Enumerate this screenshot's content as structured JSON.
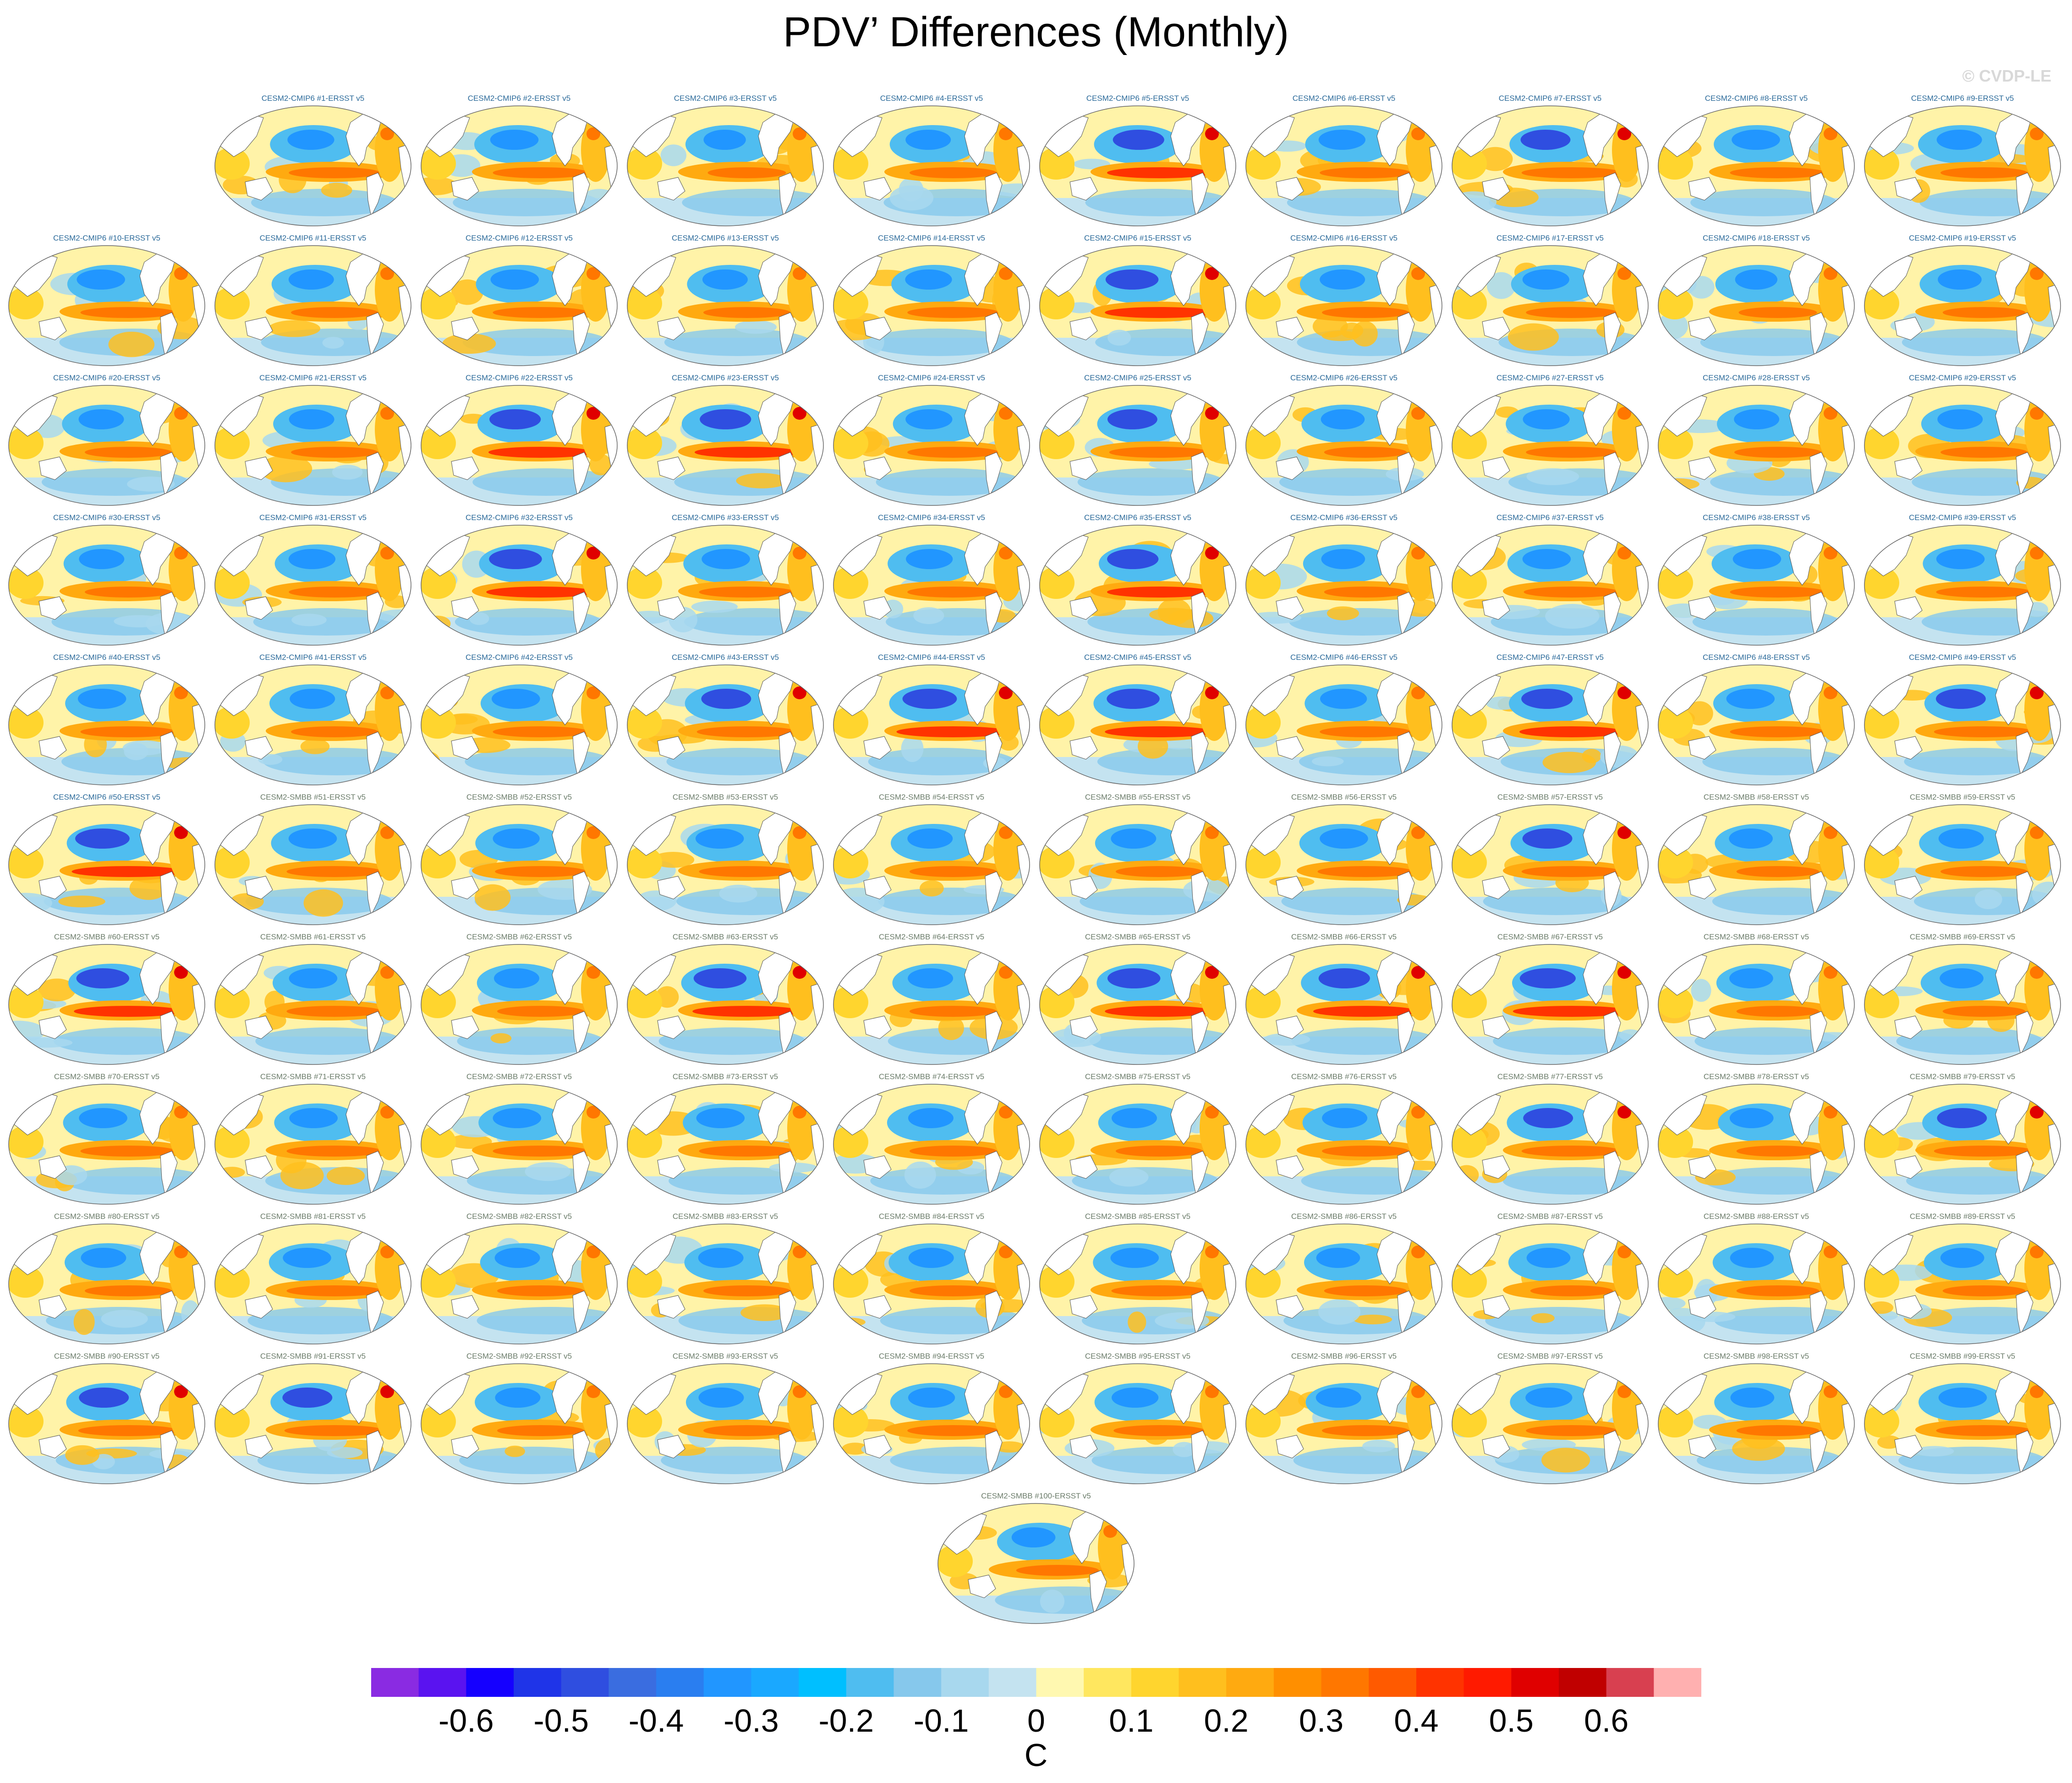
{
  "title": "PDV’ Differences (Monthly)",
  "watermark": "© CVDP-LE",
  "colorbar": {
    "unit": "C",
    "colors": [
      "#8a2be2",
      "#5a13f0",
      "#1500ff",
      "#1f34e8",
      "#2f4ee0",
      "#3a6de0",
      "#2a7ef0",
      "#2196ff",
      "#1aa8ff",
      "#00bfff",
      "#4fbdf0",
      "#86c8ec",
      "#a8d8ee",
      "#c4e3f0",
      "#fff8b0",
      "#ffe75f",
      "#ffd52e",
      "#ffbf1e",
      "#ffaa10",
      "#ff8f00",
      "#ff7700",
      "#ff5a00",
      "#ff3300",
      "#ff1a00",
      "#e00000",
      "#c00000",
      "#d84050",
      "#ffb0b0"
    ],
    "tick_labels": [
      "-0.6",
      "-0.5",
      "-0.4",
      "-0.3",
      "-0.2",
      "-0.1",
      "0",
      "0.1",
      "0.2",
      "0.3",
      "0.4",
      "0.5",
      "0.6"
    ]
  },
  "chart_data": {
    "type": "heatmap",
    "title": "PDV’ Differences (Monthly)",
    "colorbar_range": [
      -0.65,
      0.65
    ],
    "colorbar_unit": "C",
    "panels": [
      {
        "label": "CESM2-CMIP6 #1-ERSST v5",
        "color": "#2b6a9a",
        "intensity": 0.55
      },
      {
        "label": "CESM2-CMIP6 #2-ERSST v5",
        "color": "#2b6a9a",
        "intensity": 0.6
      },
      {
        "label": "CESM2-CMIP6 #3-ERSST v5",
        "color": "#2b6a9a",
        "intensity": 0.4
      },
      {
        "label": "CESM2-CMIP6 #4-ERSST v5",
        "color": "#2b6a9a",
        "intensity": 0.5
      },
      {
        "label": "CESM2-CMIP6 #5-ERSST v5",
        "color": "#2b6a9a",
        "intensity": 0.7
      },
      {
        "label": "CESM2-CMIP6 #6-ERSST v5",
        "color": "#2b6a9a",
        "intensity": 0.55
      },
      {
        "label": "CESM2-CMIP6 #7-ERSST v5",
        "color": "#2b6a9a",
        "intensity": 0.65
      },
      {
        "label": "CESM2-CMIP6 #8-ERSST v5",
        "color": "#2b6a9a",
        "intensity": 0.6
      },
      {
        "label": "CESM2-CMIP6 #9-ERSST v5",
        "color": "#2b6a9a",
        "intensity": 0.5
      },
      {
        "label": "CESM2-CMIP6 #10-ERSST v5",
        "color": "#2b6a9a",
        "intensity": 0.6
      },
      {
        "label": "CESM2-CMIP6 #11-ERSST v5",
        "color": "#2b6a9a",
        "intensity": 0.5
      },
      {
        "label": "CESM2-CMIP6 #12-ERSST v5",
        "color": "#2b6a9a",
        "intensity": 0.6
      },
      {
        "label": "CESM2-CMIP6 #13-ERSST v5",
        "color": "#2b6a9a",
        "intensity": 0.5
      },
      {
        "label": "CESM2-CMIP6 #14-ERSST v5",
        "color": "#2b6a9a",
        "intensity": 0.55
      },
      {
        "label": "CESM2-CMIP6 #15-ERSST v5",
        "color": "#2b6a9a",
        "intensity": 0.75
      },
      {
        "label": "CESM2-CMIP6 #16-ERSST v5",
        "color": "#2b6a9a",
        "intensity": 0.5
      },
      {
        "label": "CESM2-CMIP6 #17-ERSST v5",
        "color": "#2b6a9a",
        "intensity": 0.55
      },
      {
        "label": "CESM2-CMIP6 #18-ERSST v5",
        "color": "#2b6a9a",
        "intensity": 0.4
      },
      {
        "label": "CESM2-CMIP6 #19-ERSST v5",
        "color": "#2b6a9a",
        "intensity": 0.45
      },
      {
        "label": "CESM2-CMIP6 #20-ERSST v5",
        "color": "#2b6a9a",
        "intensity": 0.5
      },
      {
        "label": "CESM2-CMIP6 #21-ERSST v5",
        "color": "#2b6a9a",
        "intensity": 0.5
      },
      {
        "label": "CESM2-CMIP6 #22-ERSST v5",
        "color": "#2b6a9a",
        "intensity": 0.7
      },
      {
        "label": "CESM2-CMIP6 #23-ERSST v5",
        "color": "#2b6a9a",
        "intensity": 0.7
      },
      {
        "label": "CESM2-CMIP6 #24-ERSST v5",
        "color": "#2b6a9a",
        "intensity": 0.55
      },
      {
        "label": "CESM2-CMIP6 #25-ERSST v5",
        "color": "#2b6a9a",
        "intensity": 0.65
      },
      {
        "label": "CESM2-CMIP6 #26-ERSST v5",
        "color": "#2b6a9a",
        "intensity": 0.45
      },
      {
        "label": "CESM2-CMIP6 #27-ERSST v5",
        "color": "#2b6a9a",
        "intensity": 0.55
      },
      {
        "label": "CESM2-CMIP6 #28-ERSST v5",
        "color": "#2b6a9a",
        "intensity": 0.5
      },
      {
        "label": "CESM2-CMIP6 #29-ERSST v5",
        "color": "#2b6a9a",
        "intensity": 0.5
      },
      {
        "label": "CESM2-CMIP6 #30-ERSST v5",
        "color": "#2b6a9a",
        "intensity": 0.5
      },
      {
        "label": "CESM2-CMIP6 #31-ERSST v5",
        "color": "#2b6a9a",
        "intensity": 0.55
      },
      {
        "label": "CESM2-CMIP6 #32-ERSST v5",
        "color": "#2b6a9a",
        "intensity": 0.75
      },
      {
        "label": "CESM2-CMIP6 #33-ERSST v5",
        "color": "#2b6a9a",
        "intensity": 0.6
      },
      {
        "label": "CESM2-CMIP6 #34-ERSST v5",
        "color": "#2b6a9a",
        "intensity": 0.55
      },
      {
        "label": "CESM2-CMIP6 #35-ERSST v5",
        "color": "#2b6a9a",
        "intensity": 0.7
      },
      {
        "label": "CESM2-CMIP6 #36-ERSST v5",
        "color": "#2b6a9a",
        "intensity": 0.45
      },
      {
        "label": "CESM2-CMIP6 #37-ERSST v5",
        "color": "#2b6a9a",
        "intensity": 0.6
      },
      {
        "label": "CESM2-CMIP6 #38-ERSST v5",
        "color": "#2b6a9a",
        "intensity": 0.6
      },
      {
        "label": "CESM2-CMIP6 #39-ERSST v5",
        "color": "#2b6a9a",
        "intensity": 0.6
      },
      {
        "label": "CESM2-CMIP6 #40-ERSST v5",
        "color": "#2b6a9a",
        "intensity": 0.6
      },
      {
        "label": "CESM2-CMIP6 #41-ERSST v5",
        "color": "#2b6a9a",
        "intensity": 0.5
      },
      {
        "label": "CESM2-CMIP6 #42-ERSST v5",
        "color": "#2b6a9a",
        "intensity": 0.6
      },
      {
        "label": "CESM2-CMIP6 #43-ERSST v5",
        "color": "#2b6a9a",
        "intensity": 0.65
      },
      {
        "label": "CESM2-CMIP6 #44-ERSST v5",
        "color": "#2b6a9a",
        "intensity": 0.8
      },
      {
        "label": "CESM2-CMIP6 #45-ERSST v5",
        "color": "#2b6a9a",
        "intensity": 0.75
      },
      {
        "label": "CESM2-CMIP6 #46-ERSST v5",
        "color": "#2b6a9a",
        "intensity": 0.55
      },
      {
        "label": "CESM2-CMIP6 #47-ERSST v5",
        "color": "#2b6a9a",
        "intensity": 0.7
      },
      {
        "label": "CESM2-CMIP6 #48-ERSST v5",
        "color": "#2b6a9a",
        "intensity": 0.6
      },
      {
        "label": "CESM2-CMIP6 #49-ERSST v5",
        "color": "#2b6a9a",
        "intensity": 0.65
      },
      {
        "label": "CESM2-CMIP6 #50-ERSST v5",
        "color": "#2b6a9a",
        "intensity": 0.8
      },
      {
        "label": "CESM2-SMBB #51-ERSST v5",
        "color": "#6b7c6a",
        "intensity": 0.6
      },
      {
        "label": "CESM2-SMBB #52-ERSST v5",
        "color": "#6b7c6a",
        "intensity": 0.55
      },
      {
        "label": "CESM2-SMBB #53-ERSST v5",
        "color": "#6b7c6a",
        "intensity": 0.6
      },
      {
        "label": "CESM2-SMBB #54-ERSST v5",
        "color": "#6b7c6a",
        "intensity": 0.5
      },
      {
        "label": "CESM2-SMBB #55-ERSST v5",
        "color": "#6b7c6a",
        "intensity": 0.5
      },
      {
        "label": "CESM2-SMBB #56-ERSST v5",
        "color": "#6b7c6a",
        "intensity": 0.6
      },
      {
        "label": "CESM2-SMBB #57-ERSST v5",
        "color": "#6b7c6a",
        "intensity": 0.65
      },
      {
        "label": "CESM2-SMBB #58-ERSST v5",
        "color": "#6b7c6a",
        "intensity": 0.45
      },
      {
        "label": "CESM2-SMBB #59-ERSST v5",
        "color": "#6b7c6a",
        "intensity": 0.5
      },
      {
        "label": "CESM2-SMBB #60-ERSST v5",
        "color": "#6b7c6a",
        "intensity": 0.75
      },
      {
        "label": "CESM2-SMBB #61-ERSST v5",
        "color": "#6b7c6a",
        "intensity": 0.6
      },
      {
        "label": "CESM2-SMBB #62-ERSST v5",
        "color": "#6b7c6a",
        "intensity": 0.5
      },
      {
        "label": "CESM2-SMBB #63-ERSST v5",
        "color": "#6b7c6a",
        "intensity": 0.75
      },
      {
        "label": "CESM2-SMBB #64-ERSST v5",
        "color": "#6b7c6a",
        "intensity": 0.5
      },
      {
        "label": "CESM2-SMBB #65-ERSST v5",
        "color": "#6b7c6a",
        "intensity": 0.75
      },
      {
        "label": "CESM2-SMBB #66-ERSST v5",
        "color": "#6b7c6a",
        "intensity": 0.7
      },
      {
        "label": "CESM2-SMBB #67-ERSST v5",
        "color": "#6b7c6a",
        "intensity": 0.85
      },
      {
        "label": "CESM2-SMBB #68-ERSST v5",
        "color": "#6b7c6a",
        "intensity": 0.45
      },
      {
        "label": "CESM2-SMBB #69-ERSST v5",
        "color": "#6b7c6a",
        "intensity": 0.45
      },
      {
        "label": "CESM2-SMBB #70-ERSST v5",
        "color": "#6b7c6a",
        "intensity": 0.6
      },
      {
        "label": "CESM2-SMBB #71-ERSST v5",
        "color": "#6b7c6a",
        "intensity": 0.6
      },
      {
        "label": "CESM2-SMBB #72-ERSST v5",
        "color": "#6b7c6a",
        "intensity": 0.6
      },
      {
        "label": "CESM2-SMBB #73-ERSST v5",
        "color": "#6b7c6a",
        "intensity": 0.6
      },
      {
        "label": "CESM2-SMBB #74-ERSST v5",
        "color": "#6b7c6a",
        "intensity": 0.5
      },
      {
        "label": "CESM2-SMBB #75-ERSST v5",
        "color": "#6b7c6a",
        "intensity": 0.5
      },
      {
        "label": "CESM2-SMBB #76-ERSST v5",
        "color": "#6b7c6a",
        "intensity": 0.5
      },
      {
        "label": "CESM2-SMBB #77-ERSST v5",
        "color": "#6b7c6a",
        "intensity": 0.65
      },
      {
        "label": "CESM2-SMBB #78-ERSST v5",
        "color": "#6b7c6a",
        "intensity": 0.45
      },
      {
        "label": "CESM2-SMBB #79-ERSST v5",
        "color": "#6b7c6a",
        "intensity": 0.65
      },
      {
        "label": "CESM2-SMBB #80-ERSST v5",
        "color": "#6b7c6a",
        "intensity": 0.5
      },
      {
        "label": "CESM2-SMBB #81-ERSST v5",
        "color": "#6b7c6a",
        "intensity": 0.6
      },
      {
        "label": "CESM2-SMBB #82-ERSST v5",
        "color": "#6b7c6a",
        "intensity": 0.5
      },
      {
        "label": "CESM2-SMBB #83-ERSST v5",
        "color": "#6b7c6a",
        "intensity": 0.5
      },
      {
        "label": "CESM2-SMBB #84-ERSST v5",
        "color": "#6b7c6a",
        "intensity": 0.5
      },
      {
        "label": "CESM2-SMBB #85-ERSST v5",
        "color": "#6b7c6a",
        "intensity": 0.6
      },
      {
        "label": "CESM2-SMBB #86-ERSST v5",
        "color": "#6b7c6a",
        "intensity": 0.45
      },
      {
        "label": "CESM2-SMBB #87-ERSST v5",
        "color": "#6b7c6a",
        "intensity": 0.45
      },
      {
        "label": "CESM2-SMBB #88-ERSST v5",
        "color": "#6b7c6a",
        "intensity": 0.45
      },
      {
        "label": "CESM2-SMBB #89-ERSST v5",
        "color": "#6b7c6a",
        "intensity": 0.45
      },
      {
        "label": "CESM2-SMBB #90-ERSST v5",
        "color": "#6b7c6a",
        "intensity": 0.65
      },
      {
        "label": "CESM2-SMBB #91-ERSST v5",
        "color": "#6b7c6a",
        "intensity": 0.65
      },
      {
        "label": "CESM2-SMBB #92-ERSST v5",
        "color": "#6b7c6a",
        "intensity": 0.5
      },
      {
        "label": "CESM2-SMBB #93-ERSST v5",
        "color": "#6b7c6a",
        "intensity": 0.5
      },
      {
        "label": "CESM2-SMBB #94-ERSST v5",
        "color": "#6b7c6a",
        "intensity": 0.55
      },
      {
        "label": "CESM2-SMBB #95-ERSST v5",
        "color": "#6b7c6a",
        "intensity": 0.55
      },
      {
        "label": "CESM2-SMBB #96-ERSST v5",
        "color": "#6b7c6a",
        "intensity": 0.5
      },
      {
        "label": "CESM2-SMBB #97-ERSST v5",
        "color": "#6b7c6a",
        "intensity": 0.55
      },
      {
        "label": "CESM2-SMBB #98-ERSST v5",
        "color": "#6b7c6a",
        "intensity": 0.45
      },
      {
        "label": "CESM2-SMBB #99-ERSST v5",
        "color": "#6b7c6a",
        "intensity": 0.6
      },
      {
        "label": "CESM2-SMBB #100-ERSST v5",
        "color": "#6b7c6a",
        "intensity": 0.45
      }
    ]
  }
}
